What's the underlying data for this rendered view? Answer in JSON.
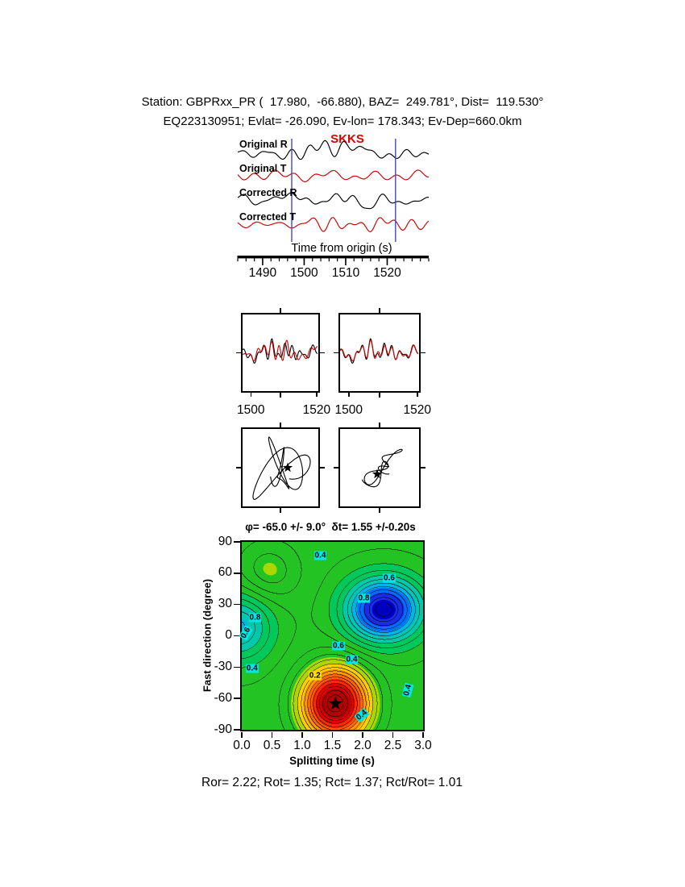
{
  "header": {
    "line1": "Station: GBPRxx_PR (  17.980,  -66.880), BAZ=  249.781°, Dist=  119.530°",
    "line2": "EQ223130951; Evlat= -26.090, Ev-lon= 178.343; Ev-Dep=660.0km"
  },
  "phase_label": {
    "text": "SKKS",
    "color": "#e00000"
  },
  "stats_line": "Ror= 2.22; Rot= 1.35; Rct= 1.37; Rct/Rot= 1.01",
  "colors": {
    "trace_black": "#000000",
    "trace_red": "#cc0000",
    "window_marker": "#4646c8",
    "contour_label_bg": "#00e6e6",
    "contour_label_bg_low": "#ffdf00",
    "axis": "#000000"
  },
  "chart_data": [
    {
      "type": "line",
      "id": "waveform-panel",
      "title": "SKKS",
      "traces": [
        "Original R",
        "Original T",
        "Corrected R",
        "Corrected T"
      ],
      "trace_colors": [
        "#000000",
        "#cc0000",
        "#000000",
        "#cc0000"
      ],
      "xlabel": "Time from origin (s)",
      "xlim": [
        1484,
        1530
      ],
      "xticks": [
        1490,
        1500,
        1510,
        1520
      ],
      "window": [
        1497,
        1522
      ]
    },
    {
      "type": "line",
      "id": "fast-slow-overlay",
      "xlim": [
        1497,
        1521
      ],
      "series_colors": [
        "#000000",
        "#cc0000"
      ],
      "panels": [
        {
          "xticks": [
            1500,
            1520
          ]
        },
        {
          "xticks": [
            1500,
            1520
          ]
        }
      ]
    },
    {
      "type": "scatter",
      "id": "particle-motion",
      "panels": [
        "original",
        "corrected"
      ],
      "marker": "star"
    },
    {
      "type": "heatmap",
      "id": "error-surface",
      "title": "φ= -65.0 +/- 9.0°  δt= 1.55 +/-0.20s",
      "xlabel": "Splitting time (s)",
      "ylabel": "Fast direction (degree)",
      "xlim": [
        0.0,
        3.0
      ],
      "ylim": [
        -90,
        90
      ],
      "xticks": [
        "0.0",
        "0.5",
        "1.0",
        "1.5",
        "2.0",
        "2.5",
        "3.0"
      ],
      "yticks": [
        90,
        60,
        30,
        0,
        -30,
        -60,
        -90
      ],
      "best": {
        "dt": 1.55,
        "dt_err": 0.2,
        "phi": -65.0,
        "phi_err": 9.0,
        "marker": "star"
      },
      "contour_interval": 0.04,
      "features": {
        "minimum": {
          "x": 1.55,
          "y": -65,
          "color": "red"
        },
        "maximum": {
          "x": 2.35,
          "y": 25,
          "color": "blue"
        },
        "background": "green"
      },
      "contour_labels": [
        {
          "t": "0.4",
          "x": 1.3,
          "y": 77,
          "bg": "cyan"
        },
        {
          "t": "0.6",
          "x": 2.44,
          "y": 55,
          "bg": "cyan"
        },
        {
          "t": "0.8",
          "x": 2.02,
          "y": 36,
          "bg": "cyan"
        },
        {
          "t": "0.8",
          "x": 0.22,
          "y": 17,
          "bg": "cyan"
        },
        {
          "t": "0.6",
          "x": 0.07,
          "y": 3,
          "bg": "cyan",
          "rot": -60
        },
        {
          "t": "0.6",
          "x": 1.6,
          "y": -10,
          "bg": "cyan"
        },
        {
          "t": "0.4",
          "x": 1.82,
          "y": -23,
          "bg": "cyan"
        },
        {
          "t": "0.4",
          "x": 0.17,
          "y": -31,
          "bg": "cyan"
        },
        {
          "t": "0.2",
          "x": 1.21,
          "y": -38,
          "bg": "yellow"
        },
        {
          "t": "0.4",
          "x": 2.74,
          "y": -52,
          "bg": "cyan",
          "rot": -75
        },
        {
          "t": "0.4",
          "x": 1.99,
          "y": -76,
          "bg": "cyan",
          "rot": -40
        }
      ]
    }
  ]
}
